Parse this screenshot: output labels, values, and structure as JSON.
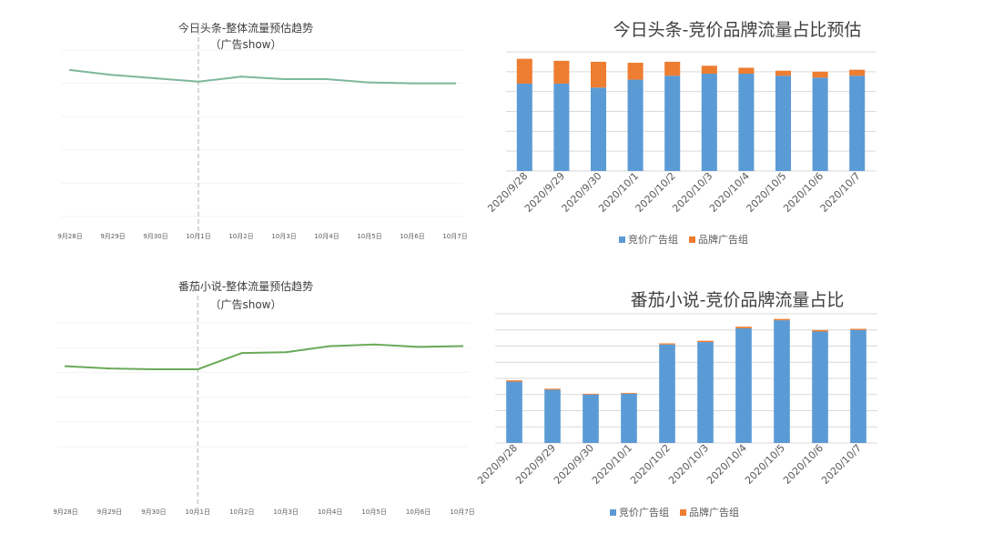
{
  "charts": {
    "toutiao_trend": {
      "title": "今日头条-整体流量预估趋势",
      "subtitle": "（广告show）",
      "color": "#7db89b"
    },
    "toutiao_share": {
      "title": "今日头条-竞价品牌流量占比预估",
      "legend": [
        "竞价广告组",
        "品牌广告组"
      ],
      "colors": [
        "#5b9bd5",
        "#ed7d31"
      ]
    },
    "fanqie_trend": {
      "title": "番茄小说-整体流量预估趋势",
      "subtitle": "（广告show）",
      "color": "#6aaa5a"
    },
    "fanqie_share": {
      "title": "番茄小说-竞价品牌流量占比",
      "legend": [
        "竞价广告组",
        "品牌广告组"
      ],
      "colors": [
        "#5b9bd5",
        "#ed7d31"
      ]
    }
  },
  "chart_data": [
    {
      "type": "line",
      "title": "今日头条-整体流量预估趋势",
      "subtitle": "（广告show）",
      "categories": [
        "9月28日",
        "9月29日",
        "9月30日",
        "10月1日",
        "10月2日",
        "10月3日",
        "10月4日",
        "10月5日",
        "10月6日",
        "10月7日"
      ],
      "values": [
        88,
        85,
        83,
        81,
        84,
        82.5,
        82.5,
        80.5,
        80,
        80
      ],
      "ylim": [
        0,
        100
      ],
      "annotation": "10月1日"
    },
    {
      "type": "bar",
      "stacked": true,
      "title": "今日头条-竞价品牌流量占比预估",
      "categories": [
        "2020/9/28",
        "2020/9/29",
        "2020/9/30",
        "2020/10/1",
        "2020/10/2",
        "2020/10/3",
        "2020/10/4",
        "2020/10/5",
        "2020/10/6",
        "2020/10/7"
      ],
      "series": [
        {
          "name": "竞价广告组",
          "values": [
            44,
            44,
            42,
            46,
            48,
            49,
            49,
            48,
            47,
            48
          ]
        },
        {
          "name": "品牌广告组",
          "values": [
            12.5,
            11.5,
            13,
            8.5,
            7,
            4,
            3,
            2.5,
            3,
            3
          ]
        }
      ],
      "ylim": [
        0,
        60
      ]
    },
    {
      "type": "line",
      "title": "番茄小说-整体流量预估趋势",
      "subtitle": "（广告show）",
      "categories": [
        "9月28日",
        "9月29日",
        "9月30日",
        "10月1日",
        "10月2日",
        "10月3日",
        "10月4日",
        "10月5日",
        "10月6日",
        "10月7日"
      ],
      "values": [
        52,
        50.5,
        50,
        50,
        60.5,
        61,
        65,
        66,
        64.5,
        65
      ],
      "ylim": [
        0,
        80
      ],
      "annotation": "10月1日"
    },
    {
      "type": "bar",
      "stacked": true,
      "title": "番茄小说-竞价品牌流量占比",
      "categories": [
        "2020/9/28",
        "2020/9/29",
        "2020/9/30",
        "2020/10/1",
        "2020/10/2",
        "2020/10/3",
        "2020/10/4",
        "2020/10/5",
        "2020/10/6",
        "2020/10/7"
      ],
      "series": [
        {
          "name": "竞价广告组",
          "values": [
            38,
            33,
            30,
            30.5,
            61,
            62.5,
            71,
            76,
            69,
            70
          ]
        },
        {
          "name": "品牌广告组",
          "values": [
            0.8,
            0.6,
            0.5,
            0.5,
            0.7,
            0.8,
            1.0,
            0.8,
            0.9,
            0.7
          ]
        }
      ],
      "ylim": [
        0,
        80
      ]
    }
  ]
}
